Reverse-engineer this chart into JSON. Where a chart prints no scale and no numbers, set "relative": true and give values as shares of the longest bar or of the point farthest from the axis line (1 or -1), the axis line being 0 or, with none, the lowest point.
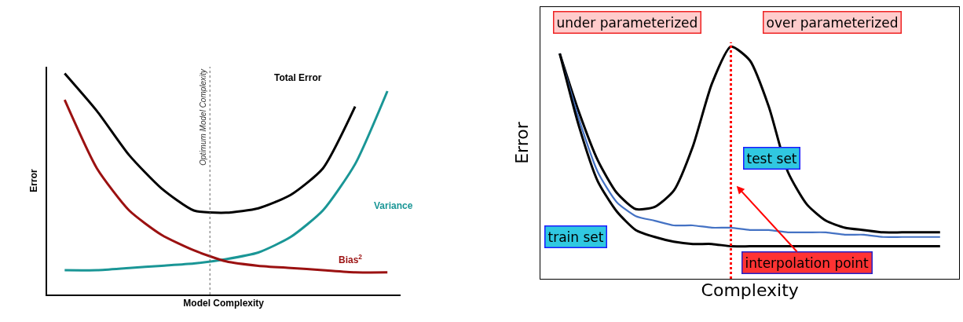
{
  "chart_data": [
    {
      "type": "line",
      "relative": true,
      "xlabel": "Model Complexity",
      "ylabel": "Error",
      "tick_labels": false,
      "categories": [
        null,
        null,
        null,
        null,
        null,
        null,
        null,
        null,
        null,
        null,
        null
      ],
      "series": [
        {
          "name": "Total Error",
          "color": "#000000",
          "values": [
            1,
            0.83,
            0.63,
            0.48,
            0.38,
            0.37,
            0.39,
            0.45,
            0.57,
            0.85,
            null
          ]
        },
        {
          "name": "Variance",
          "color": "#1a9696",
          "values": [
            0.11,
            0.11,
            0.12,
            0.13,
            0.14,
            0.16,
            0.19,
            0.26,
            0.38,
            0.59,
            0.92
          ]
        },
        {
          "name": "Bias$^{2}$",
          "color": "#9b1111",
          "values": [
            0.88,
            0.57,
            0.38,
            0.27,
            0.2,
            0.15,
            0.13,
            0.12,
            0.11,
            0.1,
            0.1
          ]
        }
      ],
      "annotations": [
        "Optimum Model Complexity"
      ]
    },
    {
      "type": "line",
      "relative": true,
      "xlabel": "Complexity",
      "ylabel": "Error",
      "tick_labels": false,
      "categories": [
        null,
        null,
        null,
        null,
        null,
        null,
        null,
        null,
        null,
        null,
        null,
        null,
        null,
        null,
        null,
        null,
        null,
        null,
        null,
        null,
        null
      ],
      "series": [
        {
          "name": "test set",
          "color": "#000000",
          "values": [
            0.97,
            0.72,
            0.51,
            0.37,
            0.3,
            0.31,
            0.38,
            0.57,
            0.84,
            1,
            0.94,
            0.74,
            0.46,
            0.32,
            0.25,
            0.22,
            0.21,
            0.2,
            0.2,
            0.2,
            0.2
          ]
        },
        {
          "color": "#4472c4",
          "values": [
            0.97,
            0.69,
            0.46,
            0.33,
            0.27,
            0.25,
            0.23,
            0.23,
            0.22,
            0.22,
            0.21,
            0.21,
            0.2,
            0.2,
            0.2,
            0.19,
            0.19,
            0.18,
            0.18,
            0.18,
            0.18
          ]
        },
        {
          "name": "train set",
          "color": "#000000",
          "values": [
            0.97,
            0.66,
            0.42,
            0.29,
            0.21,
            0.18,
            0.16,
            0.15,
            0.15,
            0.14,
            0.14,
            0.14,
            0.14,
            0.14,
            0.14,
            0.14,
            0.14,
            0.14,
            0.14,
            0.14,
            0.14
          ]
        }
      ],
      "annotations": [
        "under parameterized",
        "over parameterized",
        "interpolation point"
      ]
    }
  ]
}
